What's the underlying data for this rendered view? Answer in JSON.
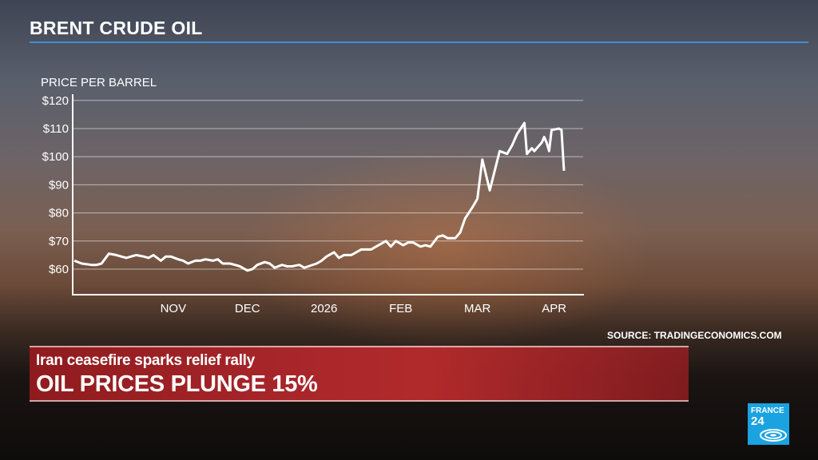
{
  "header": {
    "title": "BRENT CRUDE OIL"
  },
  "source": "SOURCE: TRADINGECONOMICS.COM",
  "banner": {
    "kicker": "Iran ceasefire sparks relief rally",
    "headline": "OIL PRICES PLUNGE 15%"
  },
  "logo": {
    "line1": "FRANCE",
    "line2": "24",
    "brand_color": "#1aa3e0"
  },
  "colors": {
    "accent_rule": "#3f8fd0",
    "banner_red": "#a8262a",
    "line": "#ffffff"
  },
  "chart_data": {
    "type": "line",
    "title": "BRENT CRUDE OIL",
    "ylabel": "PRICE PER BARREL",
    "xlabel": "",
    "ylim": [
      55,
      120
    ],
    "yticks": [
      60,
      70,
      80,
      90,
      100,
      110,
      120
    ],
    "ytick_labels": [
      "$60",
      "$70",
      "$80",
      "$90",
      "$100",
      "$110",
      "$120"
    ],
    "xticks": [
      {
        "date": "2025-11-01",
        "label": "NOV"
      },
      {
        "date": "2025-12-01",
        "label": "DEC"
      },
      {
        "date": "2026-01-01",
        "label": "2026"
      },
      {
        "date": "2026-02-01",
        "label": "FEB"
      },
      {
        "date": "2026-03-04",
        "label": "MAR"
      },
      {
        "date": "2026-04-04",
        "label": "APR"
      }
    ],
    "grid": true,
    "series": [
      {
        "points": [
          [
            "2025-09-22",
            63
          ],
          [
            "2025-09-25",
            62
          ],
          [
            "2025-09-29",
            61.5
          ],
          [
            "2025-10-01",
            61.5
          ],
          [
            "2025-10-03",
            62
          ],
          [
            "2025-10-06",
            65.5
          ],
          [
            "2025-10-09",
            65
          ],
          [
            "2025-10-13",
            64
          ],
          [
            "2025-10-15",
            64.5
          ],
          [
            "2025-10-17",
            65
          ],
          [
            "2025-10-20",
            64.5
          ],
          [
            "2025-10-22",
            64
          ],
          [
            "2025-10-24",
            65
          ],
          [
            "2025-10-27",
            63
          ],
          [
            "2025-10-29",
            64.5
          ],
          [
            "2025-10-31",
            64.5
          ],
          [
            "2025-11-03",
            63.5
          ],
          [
            "2025-11-05",
            63
          ],
          [
            "2025-11-07",
            62
          ],
          [
            "2025-11-10",
            63
          ],
          [
            "2025-11-12",
            63
          ],
          [
            "2025-11-14",
            63.5
          ],
          [
            "2025-11-17",
            63
          ],
          [
            "2025-11-19",
            63.5
          ],
          [
            "2025-11-21",
            62
          ],
          [
            "2025-11-24",
            62
          ],
          [
            "2025-11-26",
            61.5
          ],
          [
            "2025-11-28",
            61
          ],
          [
            "2025-12-01",
            59.5
          ],
          [
            "2025-12-03",
            60
          ],
          [
            "2025-12-05",
            61.5
          ],
          [
            "2025-12-08",
            62.5
          ],
          [
            "2025-12-10",
            62
          ],
          [
            "2025-12-12",
            60.5
          ],
          [
            "2025-12-15",
            61.5
          ],
          [
            "2025-12-17",
            61
          ],
          [
            "2025-12-19",
            61
          ],
          [
            "2025-12-22",
            61.5
          ],
          [
            "2025-12-24",
            60.5
          ],
          [
            "2025-12-29",
            62
          ],
          [
            "2025-12-31",
            63
          ],
          [
            "2026-01-02",
            64.5
          ],
          [
            "2026-01-05",
            66
          ],
          [
            "2026-01-07",
            64
          ],
          [
            "2026-01-09",
            65
          ],
          [
            "2026-01-12",
            65
          ],
          [
            "2026-01-14",
            66
          ],
          [
            "2026-01-16",
            67
          ],
          [
            "2026-01-20",
            67
          ],
          [
            "2026-01-22",
            68
          ],
          [
            "2026-01-26",
            70
          ],
          [
            "2026-01-28",
            68
          ],
          [
            "2026-01-30",
            70
          ],
          [
            "2026-02-02",
            68.5
          ],
          [
            "2026-02-04",
            69.5
          ],
          [
            "2026-02-06",
            69.5
          ],
          [
            "2026-02-09",
            68
          ],
          [
            "2026-02-11",
            68.5
          ],
          [
            "2026-02-13",
            68
          ],
          [
            "2026-02-16",
            71.5
          ],
          [
            "2026-02-18",
            72
          ],
          [
            "2026-02-20",
            71
          ],
          [
            "2026-02-23",
            71
          ],
          [
            "2026-02-25",
            73
          ],
          [
            "2026-02-27",
            78
          ],
          [
            "2026-03-02",
            82
          ],
          [
            "2026-03-04",
            85
          ],
          [
            "2026-03-06",
            99
          ],
          [
            "2026-03-09",
            88
          ],
          [
            "2026-03-11",
            95
          ],
          [
            "2026-03-13",
            102
          ],
          [
            "2026-03-16",
            101
          ],
          [
            "2026-03-18",
            104
          ],
          [
            "2026-03-20",
            108
          ],
          [
            "2026-03-23",
            112
          ],
          [
            "2026-03-24",
            101
          ],
          [
            "2026-03-26",
            103
          ],
          [
            "2026-03-27",
            102
          ],
          [
            "2026-03-30",
            105
          ],
          [
            "2026-03-31",
            107
          ],
          [
            "2026-04-01",
            105
          ],
          [
            "2026-04-02",
            102
          ],
          [
            "2026-04-03",
            109.5
          ],
          [
            "2026-04-06",
            110
          ],
          [
            "2026-04-07",
            109.5
          ],
          [
            "2026-04-08",
            95
          ]
        ]
      }
    ]
  }
}
